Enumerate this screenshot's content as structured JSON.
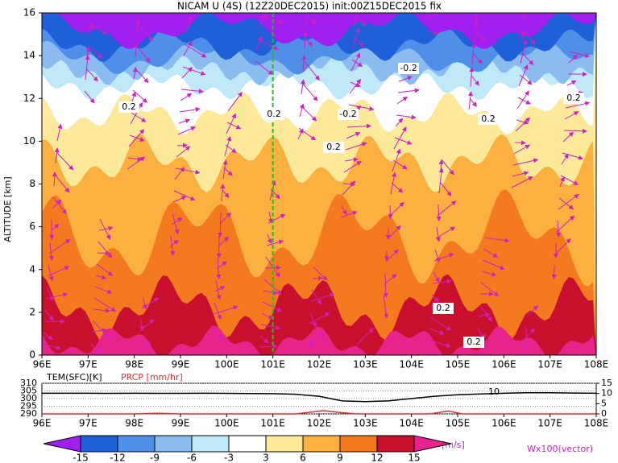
{
  "chart_data": [
    {
      "type": "contour",
      "title": "NICAM U (4S) (12Z20DEC2015) init:00Z15DEC2015 fix",
      "ylabel": "ALTITUDE [km]",
      "xlim": [
        96,
        108
      ],
      "xticks": [
        {
          "value": 96,
          "label": "96E"
        },
        {
          "value": 97,
          "label": "97E"
        },
        {
          "value": 98,
          "label": "98E"
        },
        {
          "value": 99,
          "label": "99E"
        },
        {
          "value": 100,
          "label": "100E"
        },
        {
          "value": 101,
          "label": "101E"
        },
        {
          "value": 102,
          "label": "102E"
        },
        {
          "value": 103,
          "label": "103E"
        },
        {
          "value": 104,
          "label": "104E"
        },
        {
          "value": 105,
          "label": "105E"
        },
        {
          "value": 106,
          "label": "106E"
        },
        {
          "value": 107,
          "label": "107E"
        },
        {
          "value": 108,
          "label": "108E"
        }
      ],
      "ylim": [
        0,
        16
      ],
      "yticks": [
        0,
        2,
        4,
        6,
        8,
        10,
        12,
        14,
        16
      ],
      "time_line_x": 101,
      "annotations": [
        "0.2",
        "0.2",
        "-0.2",
        "-0.2",
        "0.2",
        "0.2",
        "0.2",
        "0.2",
        "0.2"
      ],
      "vector_label": "Wx100(vector)",
      "colorbar": {
        "levels": [
          -15,
          -12,
          -9,
          -6,
          -3,
          3,
          6,
          9,
          12,
          15
        ],
        "colors": [
          "#a020f0",
          "#1f5fd8",
          "#4f8fe8",
          "#8bbcf0",
          "#bfe8f8",
          "#ffffff",
          "#fde99a",
          "#fbb040",
          "#f47a20",
          "#c8102e",
          "#e8248c"
        ],
        "unit": "[m/s]"
      }
    },
    {
      "type": "line",
      "xlim": [
        96,
        108
      ],
      "xticks": [
        {
          "value": 96,
          "label": "96E"
        },
        {
          "value": 97,
          "label": "97E"
        },
        {
          "value": 98,
          "label": "98E"
        },
        {
          "value": 99,
          "label": "99E"
        },
        {
          "value": 100,
          "label": "100E"
        },
        {
          "value": 101,
          "label": "101E"
        },
        {
          "value": 102,
          "label": "102E"
        },
        {
          "value": 103,
          "label": "103E"
        },
        {
          "value": 104,
          "label": "104E"
        },
        {
          "value": 105,
          "label": "105E"
        },
        {
          "value": 106,
          "label": "106E"
        },
        {
          "value": 107,
          "label": "107E"
        },
        {
          "value": 108,
          "label": "108E"
        }
      ],
      "ylim": [
        290,
        310
      ],
      "yticks": [
        290,
        295,
        300,
        305,
        310
      ],
      "y2lim": [
        0,
        15
      ],
      "y2ticks": [
        0,
        5,
        10,
        15
      ],
      "grid": true,
      "annotations": [
        "10"
      ],
      "series": [
        {
          "name": "TEM(SFC)[K]",
          "color": "#000000",
          "x": [
            96,
            96.5,
            97,
            97.5,
            98,
            98.5,
            99,
            99.5,
            100,
            100.5,
            101,
            101.5,
            102,
            102.5,
            103,
            103.5,
            104,
            104.5,
            105,
            105.5,
            106,
            106.5,
            107,
            107.5,
            108
          ],
          "values": [
            303.5,
            303.5,
            303.5,
            303.4,
            303.5,
            303.4,
            303.4,
            303.5,
            303.4,
            303.3,
            303.2,
            302.8,
            301.5,
            298.5,
            298,
            298.5,
            300,
            301.5,
            302.5,
            303,
            303.5,
            303.8,
            303.8,
            303.6,
            303.5
          ]
        },
        {
          "name": "PRCP [mm/hr]",
          "color": "#e03030",
          "axis": "y2",
          "x": [
            96,
            98,
            98.5,
            99,
            101.5,
            101.8,
            102.1,
            102.4,
            102.8,
            104.4,
            104.8,
            105.1,
            108
          ],
          "values": [
            0,
            0,
            0.3,
            0,
            0,
            0.8,
            1.6,
            0.8,
            0,
            0,
            1.4,
            0,
            0
          ]
        }
      ]
    }
  ]
}
